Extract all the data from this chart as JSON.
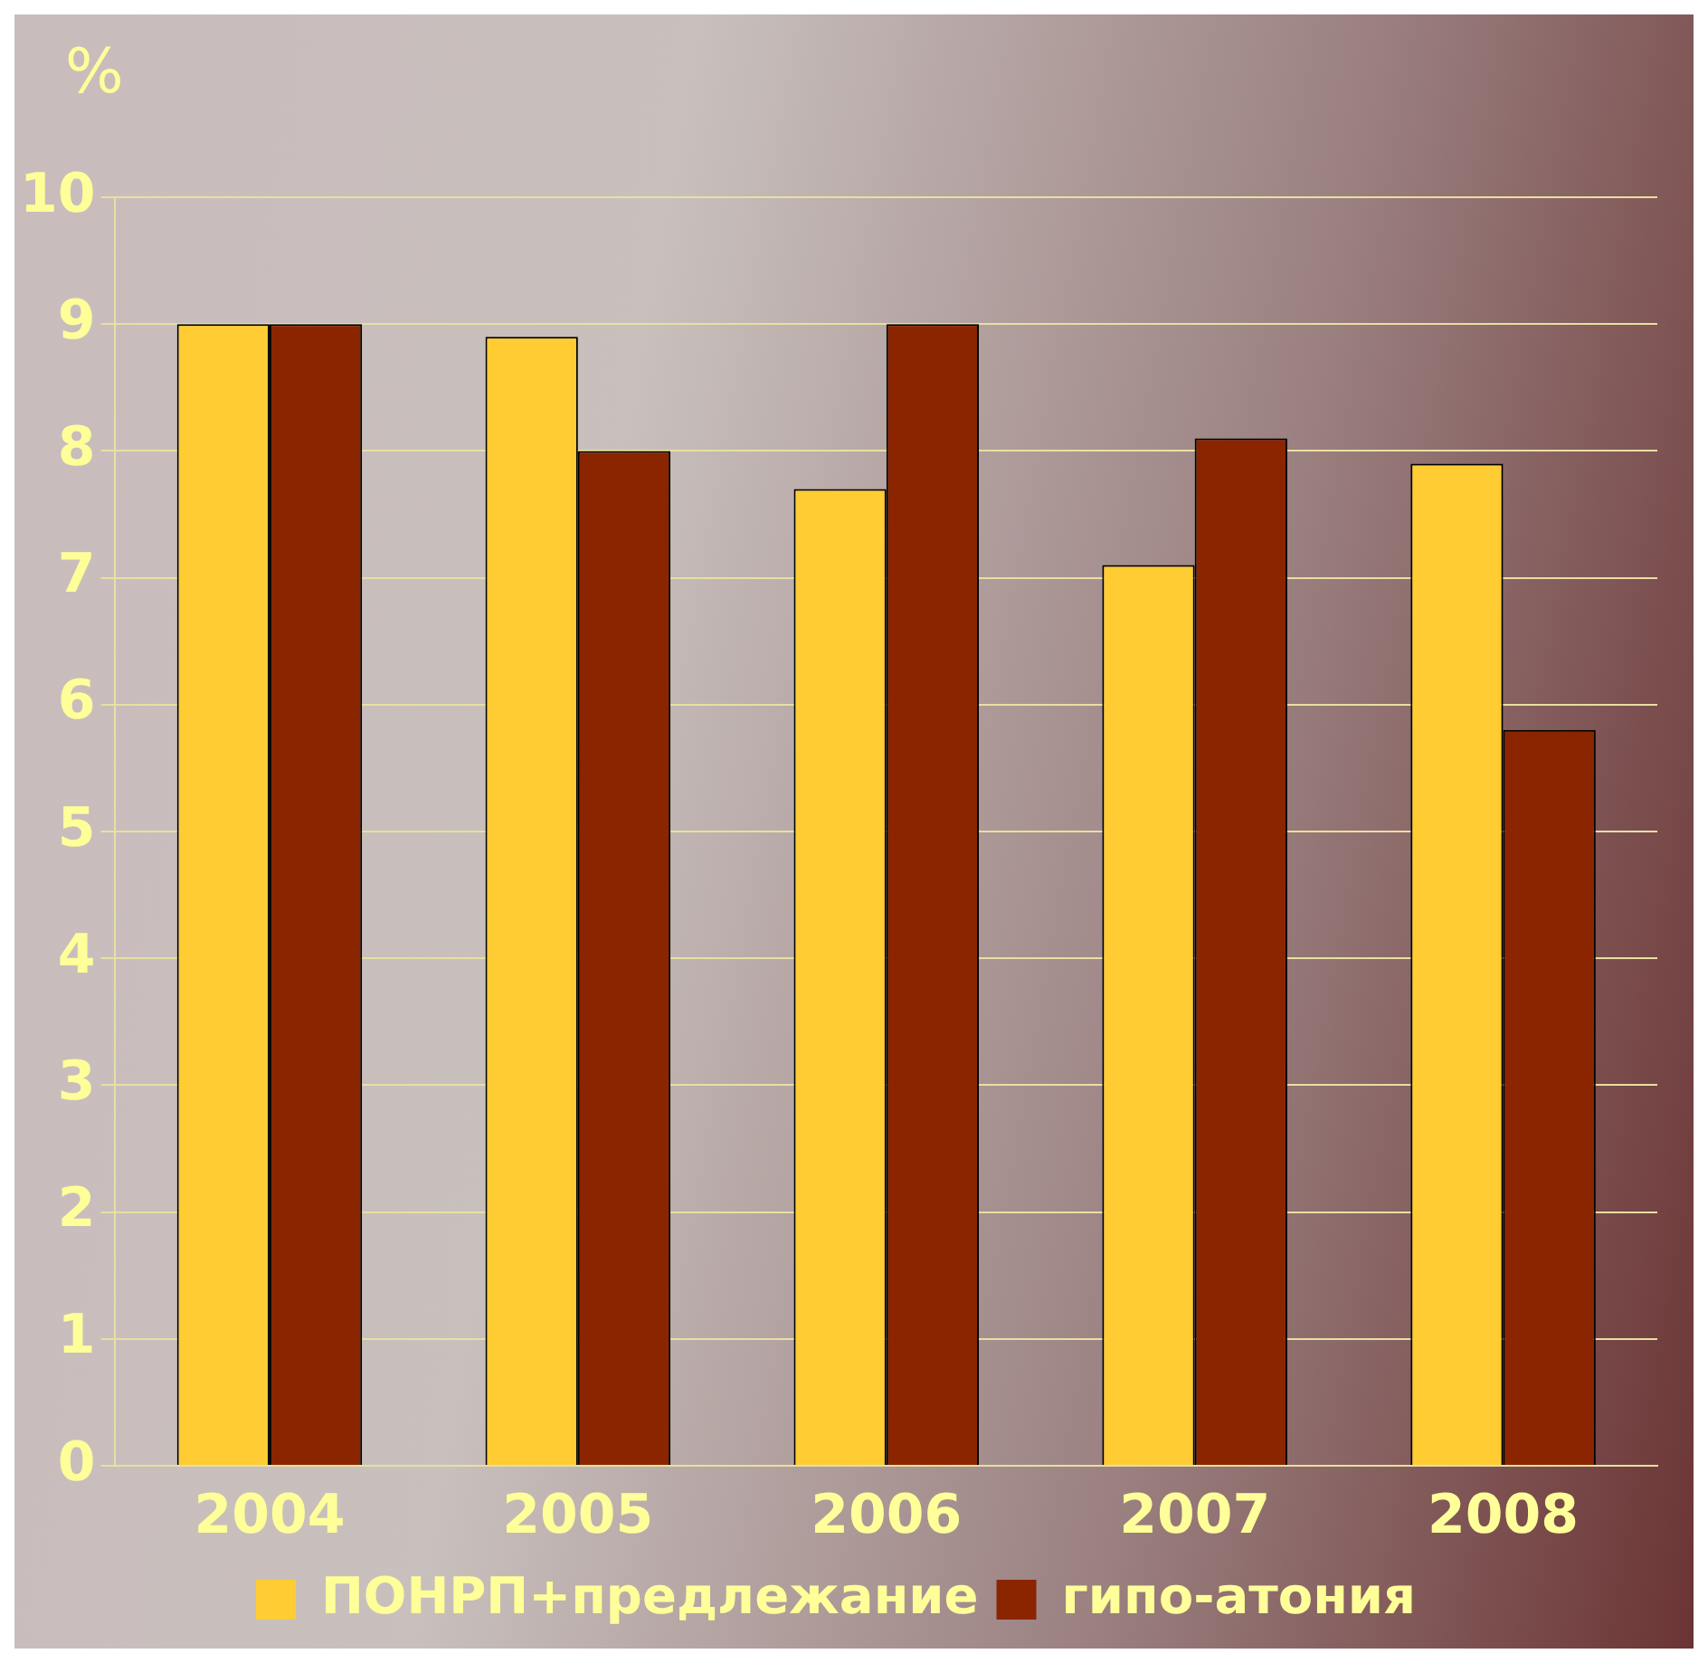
{
  "chart_data": {
    "type": "bar",
    "ylabel": "%",
    "categories": [
      "2004",
      "2005",
      "2006",
      "2007",
      "2008"
    ],
    "series": [
      {
        "name": "ПОНРП+предлежание",
        "color": "#ffcc33",
        "values": [
          9.0,
          8.9,
          7.7,
          7.1,
          7.9
        ]
      },
      {
        "name": "гипо-атония",
        "color": "#8b2500",
        "values": [
          9.0,
          8.0,
          9.0,
          8.1,
          5.8
        ]
      }
    ],
    "ylim": [
      0,
      10
    ],
    "yticks": [
      0,
      1,
      2,
      3,
      4,
      5,
      6,
      7,
      8,
      9,
      10
    ],
    "grid": "y",
    "legend": "bottom"
  }
}
